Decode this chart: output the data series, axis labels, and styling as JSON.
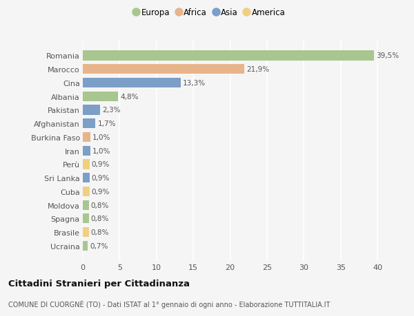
{
  "countries": [
    "Romania",
    "Marocco",
    "Cina",
    "Albania",
    "Pakistan",
    "Afghanistan",
    "Burkina Faso",
    "Iran",
    "Perù",
    "Sri Lanka",
    "Cuba",
    "Moldova",
    "Spagna",
    "Brasile",
    "Ucraina"
  ],
  "values": [
    39.5,
    21.9,
    13.3,
    4.8,
    2.3,
    1.7,
    1.0,
    1.0,
    0.9,
    0.9,
    0.9,
    0.8,
    0.8,
    0.8,
    0.7
  ],
  "labels": [
    "39,5%",
    "21,9%",
    "13,3%",
    "4,8%",
    "2,3%",
    "1,7%",
    "1,0%",
    "1,0%",
    "0,9%",
    "0,9%",
    "0,9%",
    "0,8%",
    "0,8%",
    "0,8%",
    "0,7%"
  ],
  "continents": [
    "Europa",
    "Africa",
    "Asia",
    "Europa",
    "Asia",
    "Asia",
    "Africa",
    "Asia",
    "America",
    "Asia",
    "America",
    "Europa",
    "Europa",
    "America",
    "Europa"
  ],
  "continent_colors": {
    "Europa": "#a8c68f",
    "Africa": "#e8b48a",
    "Asia": "#7b9fc7",
    "America": "#f0d080"
  },
  "legend_order": [
    "Europa",
    "Africa",
    "Asia",
    "America"
  ],
  "title": "Cittadini Stranieri per Cittadinanza",
  "subtitle": "COMUNE DI CUORGNÈ (TO) - Dati ISTAT al 1° gennaio di ogni anno - Elaborazione TUTTITALIA.IT",
  "xlim": [
    0,
    41
  ],
  "xticks": [
    0,
    5,
    10,
    15,
    20,
    25,
    30,
    35,
    40
  ],
  "background_color": "#f5f5f5",
  "grid_color": "#ffffff",
  "bar_height": 0.72
}
